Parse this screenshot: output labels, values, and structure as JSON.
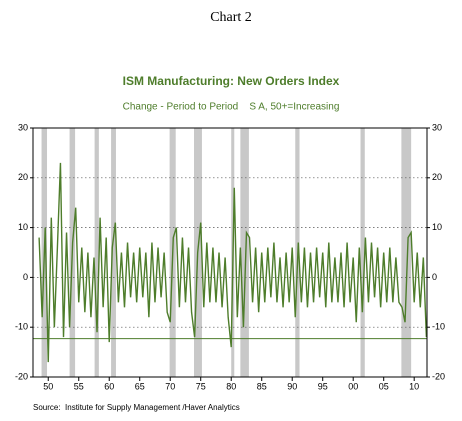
{
  "chart_data": {
    "type": "line",
    "page_title": "Chart 2",
    "title": "ISM Manufacturing: New Orders Index",
    "subtitle": "Change - Period to Period    S A, 50+=Increasing",
    "source": "Source:  Institute for Supply Management /Haver Analytics",
    "color": "#4e7d2b",
    "band_color": "#c8c8c8",
    "ref_line": -12.3,
    "recessions": [
      [
        1948.9,
        1949.8
      ],
      [
        1953.5,
        1954.4
      ],
      [
        1957.6,
        1958.3
      ],
      [
        1960.3,
        1961.1
      ],
      [
        1969.9,
        1970.9
      ],
      [
        1973.9,
        1975.2
      ],
      [
        1980.0,
        1980.5
      ],
      [
        1981.5,
        1982.9
      ],
      [
        1990.5,
        1991.2
      ],
      [
        2001.2,
        2001.9
      ],
      [
        2007.9,
        2009.5
      ]
    ],
    "xlim": [
      1947.5,
      2012.1
    ],
    "ylim": [
      -20,
      30
    ],
    "yticks": [
      -20,
      -10,
      0,
      10,
      20,
      30
    ],
    "xticks": [
      {
        "value": 1950,
        "label": "50"
      },
      {
        "value": 1955,
        "label": "55"
      },
      {
        "value": 1960,
        "label": "60"
      },
      {
        "value": 1965,
        "label": "65"
      },
      {
        "value": 1970,
        "label": "70"
      },
      {
        "value": 1975,
        "label": "75"
      },
      {
        "value": 1980,
        "label": "80"
      },
      {
        "value": 1985,
        "label": "85"
      },
      {
        "value": 1990,
        "label": "90"
      },
      {
        "value": 1995,
        "label": "95"
      },
      {
        "value": 2000,
        "label": "00"
      },
      {
        "value": 2005,
        "label": "05"
      },
      {
        "value": 2010,
        "label": "10"
      }
    ],
    "grid": true,
    "x": [
      1948.5,
      1949,
      1949.5,
      1950,
      1950.5,
      1951,
      1951.5,
      1952,
      1952.5,
      1953,
      1953.5,
      1954,
      1954.5,
      1955,
      1955.5,
      1956,
      1956.5,
      1957,
      1957.5,
      1958,
      1958.5,
      1959,
      1959.5,
      1960,
      1960.5,
      1961,
      1961.5,
      1962,
      1962.5,
      1963,
      1963.5,
      1964,
      1964.5,
      1965,
      1965.5,
      1966,
      1966.5,
      1967,
      1967.5,
      1968,
      1968.5,
      1969,
      1969.5,
      1970,
      1970.5,
      1971,
      1971.5,
      1972,
      1972.5,
      1973,
      1973.5,
      1974,
      1974.5,
      1975,
      1975.5,
      1976,
      1976.5,
      1977,
      1977.5,
      1978,
      1978.5,
      1979,
      1979.5,
      1980,
      1980.5,
      1981,
      1981.5,
      1982,
      1982.5,
      1983,
      1983.5,
      1984,
      1984.5,
      1985,
      1985.5,
      1986,
      1986.5,
      1987,
      1987.5,
      1988,
      1988.5,
      1989,
      1989.5,
      1990,
      1990.5,
      1991,
      1991.5,
      1992,
      1992.5,
      1993,
      1993.5,
      1994,
      1994.5,
      1995,
      1995.5,
      1996,
      1996.5,
      1997,
      1997.5,
      1998,
      1998.5,
      1999,
      1999.5,
      2000,
      2000.5,
      2001,
      2001.5,
      2002,
      2002.5,
      2003,
      2003.5,
      2004,
      2004.5,
      2005,
      2005.5,
      2006,
      2006.5,
      2007,
      2007.5,
      2008,
      2008.5,
      2009,
      2009.5,
      2010,
      2010.5,
      2011,
      2011.5,
      2012
    ],
    "values": [
      8,
      -8,
      10,
      -17,
      12,
      -10,
      6,
      23,
      -12,
      9,
      -10,
      7,
      14,
      -5,
      6,
      -7,
      5,
      -8,
      4,
      -11,
      12,
      -6,
      8,
      -13,
      6,
      11,
      -5,
      5,
      -6,
      7,
      -4,
      5,
      -5,
      6,
      -4,
      5,
      -8,
      7,
      -5,
      6,
      -4,
      5,
      -7,
      -9,
      8,
      10,
      -6,
      8,
      -5,
      6,
      -7,
      -12,
      5,
      11,
      -6,
      7,
      -5,
      6,
      -5,
      5,
      -6,
      4,
      -8,
      -14,
      18,
      -8,
      6,
      -10,
      9,
      8,
      -5,
      6,
      -7,
      5,
      -5,
      6,
      -4,
      7,
      -5,
      4,
      -6,
      5,
      -5,
      6,
      -8,
      7,
      -5,
      6,
      -6,
      5,
      -5,
      6,
      -4,
      5,
      -6,
      7,
      -5,
      4,
      -5,
      5,
      -6,
      7,
      -5,
      4,
      -9,
      6,
      -7,
      8,
      -5,
      7,
      -4,
      6,
      -6,
      5,
      -5,
      6,
      -5,
      4,
      -5,
      -6,
      -9,
      8,
      9,
      -5,
      5,
      -6,
      4,
      -12
    ]
  }
}
